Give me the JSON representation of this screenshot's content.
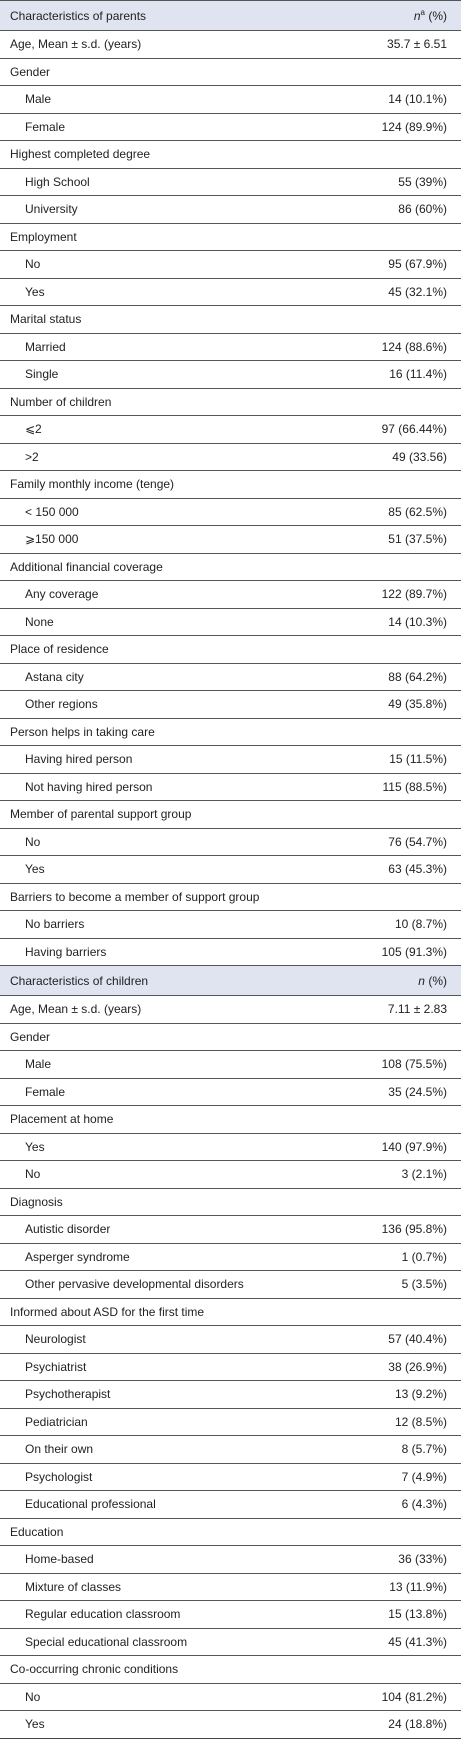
{
  "sections": [
    {
      "header": {
        "label": "Characteristics of parents",
        "count": {
          "symbol": "n",
          "note": "a",
          "unit": "(%)"
        }
      },
      "items": [
        {
          "label": "Age, Mean ± s.d. (years)",
          "value": "35.7 ± 6.51"
        },
        {
          "label": "Gender",
          "items": [
            {
              "label": "Male",
              "value": "14 (10.1%)"
            },
            {
              "label": "Female",
              "value": "124 (89.9%)"
            }
          ]
        },
        {
          "label": "Highest completed degree",
          "items": [
            {
              "label": "High School",
              "value": "55 (39%)"
            },
            {
              "label": "University",
              "value": "86 (60%)"
            }
          ]
        },
        {
          "label": "Employment",
          "items": [
            {
              "label": "No",
              "value": "95 (67.9%)"
            },
            {
              "label": "Yes",
              "value": "45 (32.1%)"
            }
          ]
        },
        {
          "label": "Marital status",
          "items": [
            {
              "label": "Married",
              "value": "124 (88.6%)"
            },
            {
              "label": "Single",
              "value": "16 (11.4%)"
            }
          ]
        },
        {
          "label": "Number of children",
          "items": [
            {
              "label": "⩽2",
              "value": "97 (66.44%)"
            },
            {
              "label": ">2",
              "value": "49 (33.56)"
            }
          ]
        },
        {
          "label": "Family monthly income (tenge)",
          "items": [
            {
              "label": "< 150 000",
              "value": "85 (62.5%)"
            },
            {
              "label": "⩾150 000",
              "value": "51 (37.5%)"
            }
          ]
        },
        {
          "label": "Additional financial coverage",
          "items": [
            {
              "label": "Any coverage",
              "value": "122 (89.7%)"
            },
            {
              "label": "None",
              "value": "14 (10.3%)"
            }
          ]
        },
        {
          "label": "Place of residence",
          "items": [
            {
              "label": "Astana city",
              "value": "88 (64.2%)"
            },
            {
              "label": "Other regions",
              "value": "49 (35.8%)"
            }
          ]
        },
        {
          "label": "Person helps in taking care",
          "items": [
            {
              "label": "Having hired person",
              "value": "15 (11.5%)"
            },
            {
              "label": "Not having hired person",
              "value": "115 (88.5%)"
            }
          ]
        },
        {
          "label": "Member of parental support group",
          "items": [
            {
              "label": "No",
              "value": "76 (54.7%)"
            },
            {
              "label": "Yes",
              "value": "63 (45.3%)"
            }
          ]
        },
        {
          "label": "Barriers to become a member of support group",
          "items": [
            {
              "label": "No barriers",
              "value": "10 (8.7%)"
            },
            {
              "label": "Having barriers",
              "value": "105 (91.3%)"
            }
          ]
        }
      ]
    },
    {
      "header": {
        "label": "Characteristics of children",
        "count": {
          "symbol": "n",
          "unit": "(%)"
        }
      },
      "items": [
        {
          "label": "Age, Mean ± s.d. (years)",
          "value": "7.11 ± 2.83"
        },
        {
          "label": "Gender",
          "items": [
            {
              "label": "Male",
              "value": "108 (75.5%)"
            },
            {
              "label": "Female",
              "value": "35 (24.5%)"
            }
          ]
        },
        {
          "label": "Placement at home",
          "items": [
            {
              "label": "Yes",
              "value": "140 (97.9%)"
            },
            {
              "label": "No",
              "value": "3 (2.1%)"
            }
          ]
        },
        {
          "label": "Diagnosis",
          "items": [
            {
              "label": "Autistic disorder",
              "value": "136 (95.8%)"
            },
            {
              "label": "Asperger syndrome",
              "value": "1 (0.7%)"
            },
            {
              "label": "Other pervasive developmental disorders",
              "value": "5 (3.5%)"
            }
          ]
        },
        {
          "label": "Informed about ASD for the first time",
          "items": [
            {
              "label": "Neurologist",
              "value": "57 (40.4%)"
            },
            {
              "label": "Psychiatrist",
              "value": "38 (26.9%)"
            },
            {
              "label": "Psychotherapist",
              "value": "13 (9.2%)"
            },
            {
              "label": "Pediatrician",
              "value": "12 (8.5%)"
            },
            {
              "label": "On their own",
              "value": "8 (5.7%)"
            },
            {
              "label": "Psychologist",
              "value": "7 (4.9%)"
            },
            {
              "label": "Educational professional",
              "value": "6 (4.3%)"
            }
          ]
        },
        {
          "label": "Education",
          "items": [
            {
              "label": "Home-based",
              "value": "36 (33%)"
            },
            {
              "label": "Mixture of classes",
              "value": "13 (11.9%)"
            },
            {
              "label": "Regular education classroom",
              "value": "15 (13.8%)"
            },
            {
              "label": "Special educational classroom",
              "value": "45 (41.3%)"
            }
          ]
        },
        {
          "label": "Co-occurring chronic conditions",
          "items": [
            {
              "label": "No",
              "value": "104 (81.2%)"
            },
            {
              "label": "Yes",
              "value": "24 (18.8%)"
            }
          ]
        }
      ]
    }
  ]
}
